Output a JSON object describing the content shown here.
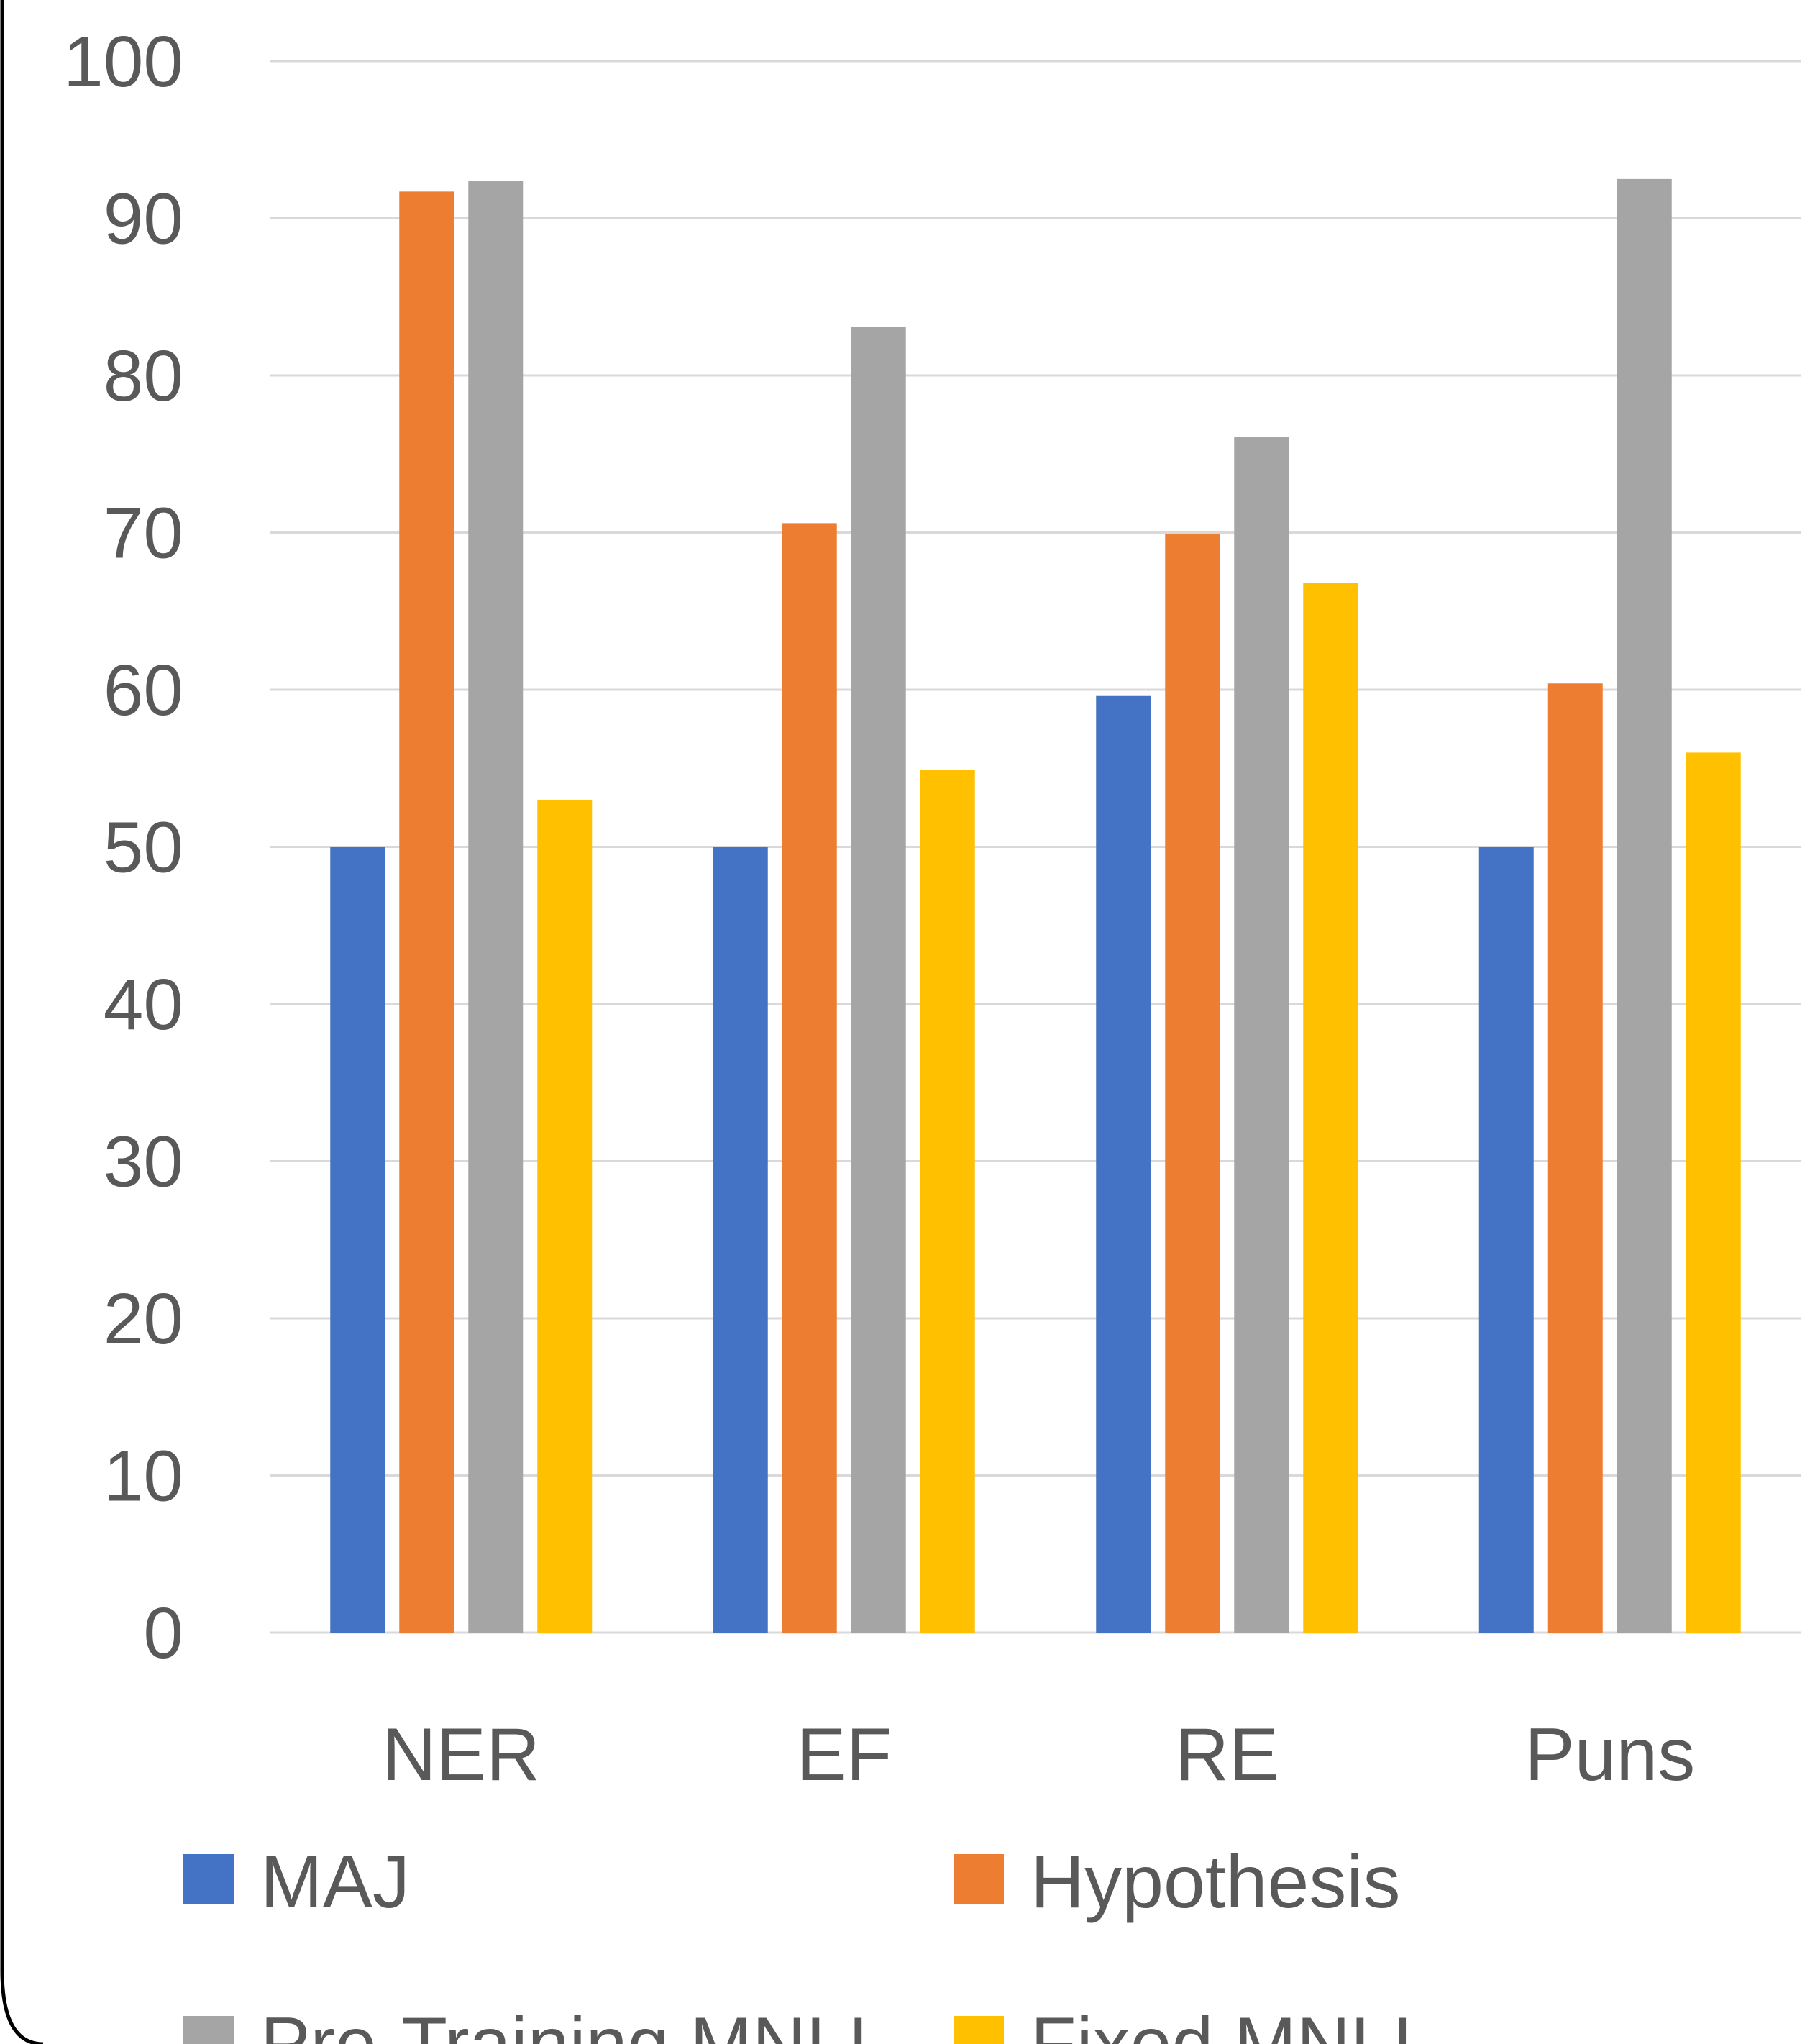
{
  "chart_data": {
    "type": "bar",
    "title": "",
    "xlabel": "",
    "ylabel": "",
    "categories": [
      "NER",
      "EF",
      "RE",
      "Puns"
    ],
    "series": [
      {
        "name": "MAJ",
        "color": "#4472C4",
        "values": [
          50,
          50,
          59.6,
          50
        ]
      },
      {
        "name": "Hypothesis",
        "color": "#ED7D31",
        "values": [
          91.7,
          70.6,
          69.9,
          60.4
        ]
      },
      {
        "name": "Pre-Training MNLI",
        "color": "#A5A5A5",
        "values": [
          92.4,
          83.1,
          76.1,
          92.5
        ]
      },
      {
        "name": "Fixed MNLI",
        "color": "#FFC000",
        "values": [
          53,
          54.9,
          66.8,
          56
        ]
      }
    ],
    "ylim": [
      0,
      100
    ],
    "yticks": [
      0,
      10,
      20,
      30,
      40,
      50,
      60,
      70,
      80,
      90,
      100
    ],
    "grid": true,
    "legend_position": "bottom"
  }
}
